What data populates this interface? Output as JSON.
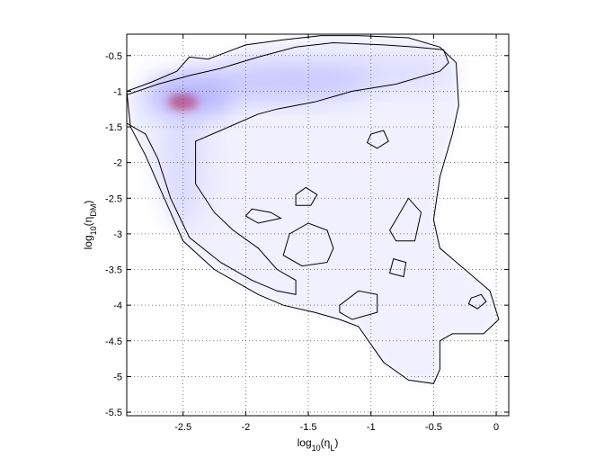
{
  "chart_data": {
    "type": "heatmap",
    "title": "",
    "xlabel": "log_10(η_L)",
    "ylabel": "log_10(η_DM)",
    "xlabel_parts": {
      "main": "log",
      "sub": "10",
      "open": "(η",
      "sym_sub": "L",
      "close": ")"
    },
    "ylabel_parts": {
      "main": "log",
      "sub": "10",
      "open": "(η",
      "sym_sub": "DM",
      "close": ")"
    },
    "xlim": [
      -2.95,
      0.1
    ],
    "ylim": [
      -5.55,
      -0.2
    ],
    "xticks": [
      -2.5,
      -2,
      -1.5,
      -1,
      -0.5,
      0
    ],
    "xtick_labels": [
      "-2.5",
      "-2",
      "-1.5",
      "-1",
      "-0.5",
      "0"
    ],
    "yticks": [
      -0.5,
      -1,
      -1.5,
      -2,
      -2.5,
      -3,
      -3.5,
      -4,
      -4.5,
      -5,
      -5.5
    ],
    "ytick_labels": [
      "-0.5",
      "-1",
      "-1.5",
      "-2",
      "-2.5",
      "-3",
      "-3.5",
      "-4",
      "-4.5",
      "-5",
      "-5.5"
    ],
    "grid": true,
    "colormap": [
      "#ffffff",
      "#d8d8ff",
      "#9a9aff",
      "#ff0000",
      "#000000"
    ],
    "peak": {
      "x": -2.5,
      "y": -1.15
    },
    "density_blobs": [
      {
        "cx": -2.5,
        "cy": -1.15,
        "rx": 0.06,
        "ry": 0.06,
        "color": "#000000",
        "opacity": 1
      },
      {
        "cx": -2.5,
        "cy": -1.15,
        "rx": 0.12,
        "ry": 0.11,
        "color": "#ff0000",
        "opacity": 0.9
      },
      {
        "cx": -2.45,
        "cy": -1.12,
        "rx": 0.35,
        "ry": 0.22,
        "color": "#8080ff",
        "opacity": 0.55
      },
      {
        "cx": -1.9,
        "cy": -0.9,
        "rx": 0.9,
        "ry": 0.22,
        "color": "#a0a0ff",
        "opacity": 0.5
      },
      {
        "cx": -1.2,
        "cy": -0.75,
        "rx": 0.9,
        "ry": 0.2,
        "color": "#c0c0ff",
        "opacity": 0.5
      },
      {
        "cx": -2.5,
        "cy": -2.0,
        "rx": 0.18,
        "ry": 0.9,
        "color": "#c8c8ff",
        "opacity": 0.5
      }
    ],
    "low_density_fill": "#f0f0ff",
    "outer_contour": [
      [
        -2.95,
        -1.0
      ],
      [
        -2.75,
        -0.87
      ],
      [
        -2.55,
        -0.72
      ],
      [
        -2.45,
        -0.52
      ],
      [
        -2.3,
        -0.55
      ],
      [
        -2.0,
        -0.35
      ],
      [
        -1.7,
        -0.28
      ],
      [
        -1.4,
        -0.22
      ],
      [
        -1.1,
        -0.22
      ],
      [
        -0.7,
        -0.25
      ],
      [
        -0.45,
        -0.38
      ],
      [
        -0.32,
        -0.6
      ],
      [
        -0.3,
        -1.2
      ],
      [
        -0.35,
        -1.6
      ],
      [
        -0.45,
        -2.2
      ],
      [
        -0.5,
        -2.8
      ],
      [
        -0.45,
        -3.2
      ],
      [
        -0.25,
        -3.5
      ],
      [
        -0.05,
        -3.8
      ],
      [
        0.02,
        -4.2
      ],
      [
        -0.1,
        -4.4
      ],
      [
        -0.35,
        -4.4
      ],
      [
        -0.45,
        -4.5
      ],
      [
        -0.45,
        -4.9
      ],
      [
        -0.5,
        -5.1
      ],
      [
        -0.7,
        -5.05
      ],
      [
        -0.9,
        -4.8
      ],
      [
        -1.0,
        -4.55
      ],
      [
        -1.1,
        -4.3
      ],
      [
        -1.25,
        -4.2
      ],
      [
        -1.45,
        -4.1
      ],
      [
        -1.7,
        -4.0
      ],
      [
        -1.9,
        -3.85
      ],
      [
        -2.05,
        -3.7
      ],
      [
        -2.25,
        -3.5
      ],
      [
        -2.5,
        -3.1
      ],
      [
        -2.65,
        -2.5
      ],
      [
        -2.8,
        -1.9
      ],
      [
        -2.92,
        -1.5
      ],
      [
        -2.95,
        -1.0
      ]
    ],
    "inner_contour": [
      [
        -2.95,
        -1.05
      ],
      [
        -2.7,
        -0.9
      ],
      [
        -2.45,
        -0.78
      ],
      [
        -2.2,
        -0.68
      ],
      [
        -1.9,
        -0.52
      ],
      [
        -1.6,
        -0.38
      ],
      [
        -1.3,
        -0.32
      ],
      [
        -0.9,
        -0.35
      ],
      [
        -0.65,
        -0.38
      ],
      [
        -0.42,
        -0.42
      ],
      [
        -0.38,
        -0.6
      ],
      [
        -0.45,
        -0.72
      ],
      [
        -0.8,
        -0.9
      ],
      [
        -1.15,
        -1.0
      ],
      [
        -1.45,
        -1.15
      ],
      [
        -1.75,
        -1.25
      ],
      [
        -1.9,
        -1.32
      ],
      [
        -2.2,
        -1.55
      ],
      [
        -2.4,
        -1.7
      ],
      [
        -2.4,
        -2.3
      ],
      [
        -2.25,
        -2.7
      ],
      [
        -2.1,
        -2.95
      ],
      [
        -1.9,
        -3.2
      ],
      [
        -1.75,
        -3.5
      ],
      [
        -1.6,
        -3.65
      ],
      [
        -1.6,
        -3.85
      ],
      [
        -1.75,
        -3.8
      ],
      [
        -1.95,
        -3.65
      ],
      [
        -2.2,
        -3.4
      ],
      [
        -2.45,
        -3.05
      ],
      [
        -2.6,
        -2.5
      ],
      [
        -2.7,
        -1.95
      ],
      [
        -2.8,
        -1.6
      ],
      [
        -2.95,
        -1.45
      ]
    ],
    "islands": [
      [
        [
          -1.0,
          -1.6
        ],
        [
          -0.9,
          -1.55
        ],
        [
          -0.86,
          -1.7
        ],
        [
          -0.95,
          -1.8
        ],
        [
          -1.03,
          -1.72
        ]
      ],
      [
        [
          -1.95,
          -2.65
        ],
        [
          -1.8,
          -2.7
        ],
        [
          -1.72,
          -2.78
        ],
        [
          -1.9,
          -2.85
        ],
        [
          -2.0,
          -2.75
        ]
      ],
      [
        [
          -1.6,
          -2.45
        ],
        [
          -1.52,
          -2.35
        ],
        [
          -1.43,
          -2.45
        ],
        [
          -1.48,
          -2.6
        ],
        [
          -1.6,
          -2.6
        ]
      ],
      [
        [
          -1.65,
          -3.0
        ],
        [
          -1.5,
          -2.85
        ],
        [
          -1.35,
          -2.95
        ],
        [
          -1.3,
          -3.2
        ],
        [
          -1.35,
          -3.4
        ],
        [
          -1.55,
          -3.45
        ],
        [
          -1.7,
          -3.3
        ]
      ],
      [
        [
          -0.8,
          -2.8
        ],
        [
          -0.7,
          -2.5
        ],
        [
          -0.6,
          -2.7
        ],
        [
          -0.65,
          -3.1
        ],
        [
          -0.8,
          -3.1
        ],
        [
          -0.85,
          -2.95
        ]
      ],
      [
        [
          -0.82,
          -3.35
        ],
        [
          -0.72,
          -3.4
        ],
        [
          -0.74,
          -3.6
        ],
        [
          -0.85,
          -3.55
        ]
      ],
      [
        [
          -1.25,
          -4.0
        ],
        [
          -1.1,
          -3.8
        ],
        [
          -0.95,
          -3.85
        ],
        [
          -0.95,
          -4.1
        ],
        [
          -1.15,
          -4.2
        ],
        [
          -1.25,
          -4.1
        ]
      ],
      [
        [
          -0.2,
          -3.9
        ],
        [
          -0.12,
          -3.85
        ],
        [
          -0.08,
          -3.95
        ],
        [
          -0.15,
          -4.05
        ],
        [
          -0.22,
          -3.98
        ]
      ]
    ]
  }
}
